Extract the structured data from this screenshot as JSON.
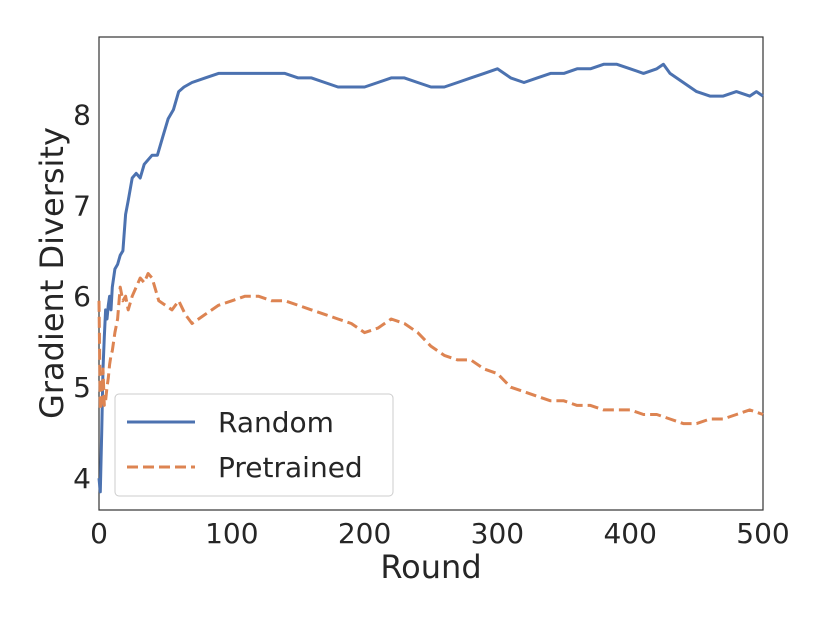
{
  "chart_data": {
    "type": "line",
    "title": "",
    "xlabel": "Round",
    "ylabel": "Gradient Diversity",
    "xlim": [
      0,
      500
    ],
    "ylim": [
      3.65,
      8.85
    ],
    "xticks": [
      0,
      100,
      200,
      300,
      400,
      500
    ],
    "yticks": [
      4,
      5,
      6,
      7,
      8
    ],
    "grid": false,
    "legend_position": "lower-left",
    "series": [
      {
        "name": "Random",
        "color": "#4c72b0",
        "style": "solid",
        "x": [
          0,
          1,
          2,
          3,
          4,
          5,
          6,
          7,
          8,
          9,
          10,
          12,
          14,
          16,
          18,
          20,
          22,
          25,
          28,
          31,
          34,
          37,
          40,
          44,
          48,
          52,
          56,
          60,
          64,
          70,
          80,
          90,
          100,
          110,
          120,
          130,
          140,
          150,
          160,
          170,
          180,
          190,
          200,
          210,
          220,
          230,
          240,
          250,
          260,
          270,
          280,
          290,
          300,
          310,
          320,
          330,
          340,
          350,
          360,
          370,
          380,
          390,
          400,
          410,
          420,
          425,
          430,
          440,
          450,
          460,
          470,
          480,
          490,
          495,
          500
        ],
        "values": [
          4.0,
          3.85,
          4.5,
          5.2,
          5.55,
          5.85,
          5.75,
          5.9,
          6.0,
          5.85,
          6.1,
          6.3,
          6.35,
          6.45,
          6.5,
          6.9,
          7.05,
          7.3,
          7.35,
          7.3,
          7.45,
          7.5,
          7.55,
          7.55,
          7.75,
          7.95,
          8.05,
          8.25,
          8.3,
          8.35,
          8.4,
          8.45,
          8.45,
          8.45,
          8.45,
          8.45,
          8.45,
          8.4,
          8.4,
          8.35,
          8.3,
          8.3,
          8.3,
          8.35,
          8.4,
          8.4,
          8.35,
          8.3,
          8.3,
          8.35,
          8.4,
          8.45,
          8.5,
          8.4,
          8.35,
          8.4,
          8.45,
          8.45,
          8.5,
          8.5,
          8.55,
          8.55,
          8.5,
          8.45,
          8.5,
          8.55,
          8.45,
          8.35,
          8.25,
          8.2,
          8.2,
          8.25,
          8.2,
          8.25,
          8.2
        ]
      },
      {
        "name": "Pretrained",
        "color": "#dd8452",
        "style": "dashed",
        "x": [
          0,
          1,
          2,
          3,
          4,
          5,
          6,
          7,
          8,
          9,
          10,
          12,
          14,
          16,
          18,
          20,
          22,
          25,
          28,
          31,
          34,
          37,
          40,
          45,
          50,
          55,
          60,
          65,
          70,
          75,
          80,
          90,
          100,
          110,
          120,
          130,
          140,
          150,
          160,
          170,
          180,
          190,
          200,
          210,
          220,
          230,
          240,
          250,
          260,
          270,
          280,
          290,
          300,
          310,
          320,
          330,
          340,
          350,
          360,
          370,
          380,
          390,
          400,
          410,
          420,
          430,
          440,
          450,
          460,
          470,
          480,
          490,
          500
        ],
        "values": [
          5.95,
          4.75,
          4.85,
          5.2,
          4.8,
          4.85,
          5.0,
          5.1,
          5.25,
          5.35,
          5.4,
          5.6,
          5.75,
          6.1,
          5.95,
          6.0,
          5.85,
          6.0,
          6.1,
          6.2,
          6.15,
          6.25,
          6.2,
          5.95,
          5.9,
          5.85,
          5.95,
          5.8,
          5.7,
          5.75,
          5.8,
          5.9,
          5.95,
          6.0,
          6.0,
          5.95,
          5.95,
          5.9,
          5.85,
          5.8,
          5.75,
          5.7,
          5.6,
          5.65,
          5.75,
          5.7,
          5.6,
          5.45,
          5.35,
          5.3,
          5.3,
          5.2,
          5.15,
          5.0,
          4.95,
          4.9,
          4.85,
          4.85,
          4.8,
          4.8,
          4.75,
          4.75,
          4.75,
          4.7,
          4.7,
          4.65,
          4.6,
          4.6,
          4.65,
          4.65,
          4.7,
          4.75,
          4.7
        ]
      }
    ]
  }
}
